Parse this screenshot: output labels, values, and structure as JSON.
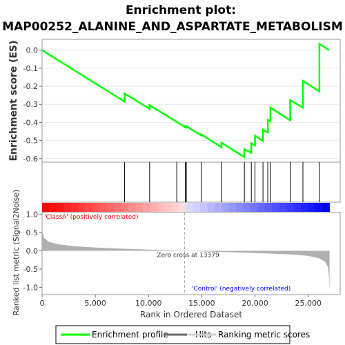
{
  "title_line1": "Enrichment plot:",
  "title_line2": "MAP00252_ALANINE_AND_ASPARTATE_METABOLISM",
  "colors": {
    "enrichment": "#00ff00",
    "hits": "#000000",
    "metric": "#b0b0b0",
    "positive_label": "#ff0000",
    "negative_label": "#0000ff"
  },
  "chart_data": [
    {
      "type": "line",
      "ylabel": "Enrichment score (ES)",
      "yticks": [
        "0.0",
        "-0.1",
        "-0.2",
        "-0.3",
        "-0.4",
        "-0.5",
        "-0.6"
      ],
      "ylim": [
        -0.62,
        0.06
      ],
      "xlim": [
        0,
        28000
      ],
      "series": [
        {
          "name": "Enrichment profile",
          "points": [
            [
              0,
              0.0
            ],
            [
              7750,
              -0.285
            ],
            [
              7750,
              -0.24
            ],
            [
              10100,
              -0.325
            ],
            [
              10100,
              -0.305
            ],
            [
              12650,
              -0.397
            ],
            [
              13450,
              -0.427
            ],
            [
              13450,
              -0.422
            ],
            [
              13550,
              -0.426
            ],
            [
              13550,
              -0.421
            ],
            [
              14950,
              -0.472
            ],
            [
              14950,
              -0.466
            ],
            [
              16850,
              -0.537
            ],
            [
              16850,
              -0.512
            ],
            [
              19000,
              -0.592
            ],
            [
              19000,
              -0.548
            ],
            [
              19650,
              -0.568
            ],
            [
              19650,
              -0.515
            ],
            [
              20000,
              -0.527
            ],
            [
              20000,
              -0.473
            ],
            [
              20750,
              -0.503
            ],
            [
              20750,
              -0.44
            ],
            [
              21200,
              -0.456
            ],
            [
              21200,
              -0.385
            ],
            [
              21450,
              -0.393
            ],
            [
              21450,
              -0.318
            ],
            [
              23300,
              -0.388
            ],
            [
              23300,
              -0.276
            ],
            [
              24500,
              -0.318
            ],
            [
              24500,
              -0.17
            ],
            [
              26050,
              -0.228
            ],
            [
              26050,
              0.035
            ],
            [
              26950,
              0.0
            ]
          ]
        }
      ]
    },
    {
      "type": "hits",
      "series_name": "Hits",
      "positions": [
        7750,
        10100,
        12650,
        13450,
        13550,
        14950,
        16850,
        19000,
        19650,
        20000,
        20750,
        21200,
        21450,
        23300,
        24500,
        26050
      ]
    },
    {
      "type": "area",
      "ylabel": "Ranked list metric (Signal2Noise)",
      "xlabel": "Rank in Ordered Dataset",
      "series_name": "Ranking metric scores",
      "xticks": [
        "0",
        "5,000",
        "10,000",
        "15,000",
        "20,000",
        "25,000"
      ],
      "yticks": [
        "1.0",
        "0.5",
        "0.0",
        "-0.5",
        "-1.0"
      ],
      "ylim": [
        -1.2,
        1.05
      ],
      "xlim": [
        0,
        28000
      ],
      "zero_cross": 13379,
      "zero_cross_label": "Zero cross at 13379",
      "positive_label": "'ClassA' (positively correlated)",
      "negative_label": "'Control' (negatively correlated)",
      "profile": [
        [
          0,
          0.55
        ],
        [
          200,
          0.35
        ],
        [
          600,
          0.25
        ],
        [
          1500,
          0.18
        ],
        [
          3000,
          0.13
        ],
        [
          5000,
          0.09
        ],
        [
          7500,
          0.06
        ],
        [
          10000,
          0.035
        ],
        [
          12000,
          0.015
        ],
        [
          13379,
          0.0
        ],
        [
          15000,
          -0.015
        ],
        [
          18000,
          -0.04
        ],
        [
          21000,
          -0.07
        ],
        [
          23500,
          -0.1
        ],
        [
          25000,
          -0.14
        ],
        [
          26000,
          -0.2
        ],
        [
          26600,
          -0.3
        ],
        [
          26850,
          -0.45
        ],
        [
          26950,
          -0.7
        ],
        [
          27000,
          -1.12
        ]
      ]
    }
  ],
  "legend": {
    "enrichment_label": "Enrichment profile",
    "hits_label": "Hits",
    "metric_label": "Ranking metric scores"
  }
}
